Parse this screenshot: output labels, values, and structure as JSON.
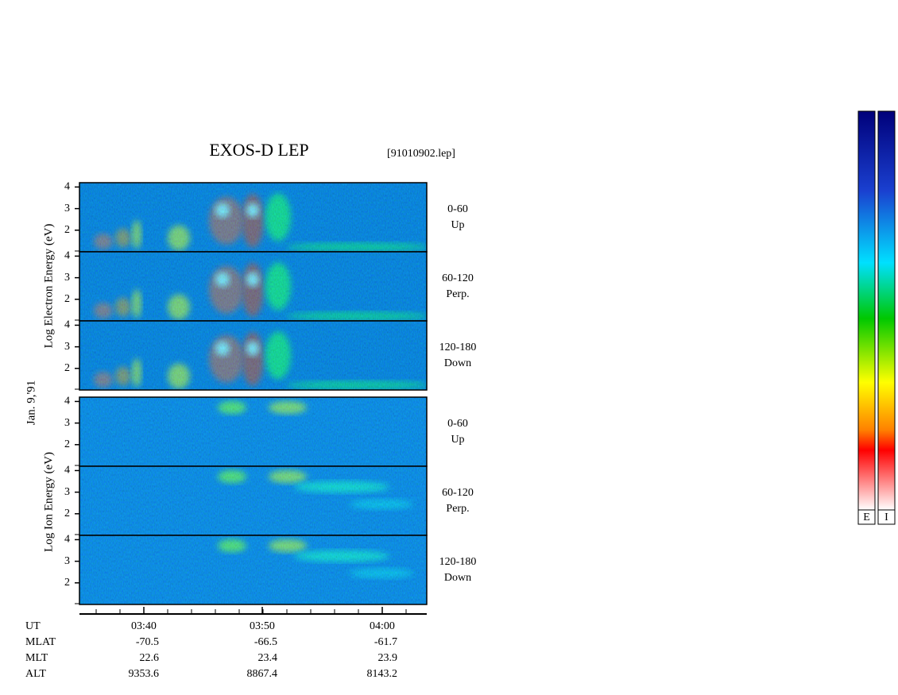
{
  "title": "EXOS-D LEP",
  "file": "[91010902.lep]",
  "date_label": "Jan. 9,'91",
  "electron_axis_label": "Log Electron Energy (eV)",
  "ion_axis_label": "Log Ion Energy (eV)",
  "energy_ticks": [
    "2",
    "3",
    "4"
  ],
  "electron_panels": [
    [
      "0-60",
      "Up"
    ],
    [
      "60-120",
      "Perp."
    ],
    [
      "120-180",
      "Down"
    ]
  ],
  "ion_panels": [
    [
      "0-60",
      "Up"
    ],
    [
      "60-120",
      "Perp."
    ],
    [
      "120-180",
      "Down"
    ]
  ],
  "ut_label": "UT",
  "time_ticks": [
    "03:40",
    "03:50",
    "04:00"
  ],
  "orbit_rows": [
    {
      "label": "MLAT",
      "values": [
        "-70.5",
        "-66.5",
        "-61.7"
      ]
    },
    {
      "label": "MLT",
      "values": [
        "22.6",
        "23.4",
        "23.9"
      ]
    },
    {
      "label": "ALT",
      "values": [
        "9353.6",
        "8867.4",
        "8143.2"
      ]
    }
  ],
  "colorbar_labels": [
    "E",
    "I"
  ]
}
